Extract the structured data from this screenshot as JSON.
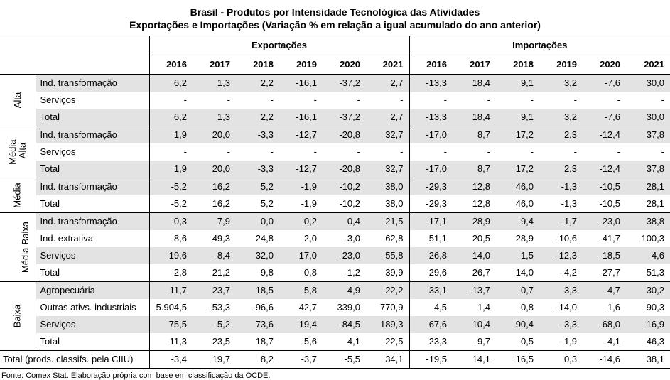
{
  "title_line1": "Brasil - Produtos por Intensidade Tecnológica das Atividades",
  "title_line2": "Exportações e Importações (Variação % em relação a igual acumulado do ano anterior)",
  "header": {
    "exports_label": "Exportações",
    "imports_label": "Importações",
    "years": [
      "2016",
      "2017",
      "2018",
      "2019",
      "2020",
      "2021"
    ]
  },
  "groups": [
    {
      "label": "Alta",
      "rows": [
        {
          "label": "Ind. transformação",
          "exp": [
            "6,2",
            "1,3",
            "2,2",
            "-16,1",
            "-37,2",
            "2,7"
          ],
          "imp": [
            "-13,3",
            "18,4",
            "9,1",
            "3,2",
            "-7,6",
            "30,0"
          ]
        },
        {
          "label": "Serviços",
          "exp": [
            "-",
            "-",
            "-",
            "-",
            "-",
            "-"
          ],
          "imp": [
            "-",
            "-",
            "-",
            "-",
            "-",
            "-"
          ]
        },
        {
          "label": "Total",
          "exp": [
            "6,2",
            "1,3",
            "2,2",
            "-16,1",
            "-37,2",
            "2,7"
          ],
          "imp": [
            "-13,3",
            "18,4",
            "9,1",
            "3,2",
            "-7,6",
            "30,0"
          ]
        }
      ]
    },
    {
      "label": "Média-Alta",
      "rows": [
        {
          "label": "Ind. transformação",
          "exp": [
            "1,9",
            "20,0",
            "-3,3",
            "-12,7",
            "-20,8",
            "32,7"
          ],
          "imp": [
            "-17,0",
            "8,7",
            "17,2",
            "2,3",
            "-12,4",
            "37,8"
          ]
        },
        {
          "label": "Serviços",
          "exp": [
            "-",
            "-",
            "-",
            "-",
            "-",
            "-"
          ],
          "imp": [
            "-",
            "-",
            "-",
            "-",
            "-",
            "-"
          ]
        },
        {
          "label": "Total",
          "exp": [
            "1,9",
            "20,0",
            "-3,3",
            "-12,7",
            "-20,8",
            "32,7"
          ],
          "imp": [
            "-17,0",
            "8,7",
            "17,2",
            "2,3",
            "-12,4",
            "37,8"
          ]
        }
      ]
    },
    {
      "label": "Média",
      "rows": [
        {
          "label": "Ind. transformação",
          "exp": [
            "-5,2",
            "16,2",
            "5,2",
            "-1,9",
            "-10,2",
            "38,0"
          ],
          "imp": [
            "-29,3",
            "12,8",
            "46,0",
            "-1,3",
            "-10,5",
            "28,1"
          ]
        },
        {
          "label": "Total",
          "exp": [
            "-5,2",
            "16,2",
            "5,2",
            "-1,9",
            "-10,2",
            "38,0"
          ],
          "imp": [
            "-29,3",
            "12,8",
            "46,0",
            "-1,3",
            "-10,5",
            "28,1"
          ]
        }
      ]
    },
    {
      "label": "Média-Baixa",
      "rows": [
        {
          "label": "Ind. transformação",
          "exp": [
            "0,3",
            "7,9",
            "0,0",
            "-0,2",
            "0,4",
            "21,5"
          ],
          "imp": [
            "-17,1",
            "28,9",
            "9,4",
            "-1,7",
            "-23,0",
            "38,8"
          ]
        },
        {
          "label": "Ind. extrativa",
          "exp": [
            "-8,6",
            "49,3",
            "24,8",
            "2,0",
            "-3,0",
            "62,8"
          ],
          "imp": [
            "-51,1",
            "20,5",
            "28,9",
            "-10,6",
            "-41,7",
            "100,3"
          ]
        },
        {
          "label": "Serviços",
          "exp": [
            "19,6",
            "-8,4",
            "32,0",
            "-17,0",
            "-23,0",
            "55,8"
          ],
          "imp": [
            "-26,8",
            "14,0",
            "-1,5",
            "-12,3",
            "-18,5",
            "4,6"
          ]
        },
        {
          "label": "Total",
          "exp": [
            "-2,8",
            "21,2",
            "9,8",
            "0,8",
            "-1,2",
            "39,9"
          ],
          "imp": [
            "-29,6",
            "26,7",
            "14,0",
            "-4,2",
            "-27,7",
            "51,3"
          ]
        }
      ]
    },
    {
      "label": "Baixa",
      "rows": [
        {
          "label": "Agropecuária",
          "exp": [
            "-11,7",
            "23,7",
            "18,5",
            "-5,8",
            "4,9",
            "22,2"
          ],
          "imp": [
            "33,1",
            "-13,7",
            "-0,7",
            "3,3",
            "-4,7",
            "30,2"
          ]
        },
        {
          "label": "Outras ativs. industriais",
          "exp": [
            "5.904,5",
            "-53,3",
            "-96,6",
            "42,7",
            "339,0",
            "770,9"
          ],
          "imp": [
            "4,5",
            "1,4",
            "-0,8",
            "-14,0",
            "-1,6",
            "90,3"
          ]
        },
        {
          "label": "Serviços",
          "exp": [
            "75,5",
            "-5,2",
            "73,6",
            "19,4",
            "-84,5",
            "189,3"
          ],
          "imp": [
            "-67,6",
            "10,4",
            "90,4",
            "-3,3",
            "-68,0",
            "-16,9"
          ]
        },
        {
          "label": "Total",
          "exp": [
            "-11,3",
            "23,5",
            "18,7",
            "-5,6",
            "4,1",
            "22,5"
          ],
          "imp": [
            "23,3",
            "-9,7",
            "-0,5",
            "-1,9",
            "-4,1",
            "46,3"
          ]
        }
      ]
    }
  ],
  "grand_total": {
    "label": "Total (prods. classifs. pela CIIU)",
    "exp": [
      "-3,4",
      "19,7",
      "8,2",
      "-3,7",
      "-5,5",
      "34,1"
    ],
    "imp": [
      "-19,5",
      "14,1",
      "16,5",
      "0,3",
      "-14,6",
      "38,1"
    ]
  },
  "footer": "Fonte: Comex Stat. Elaboração própria com base em classificação da OCDE."
}
